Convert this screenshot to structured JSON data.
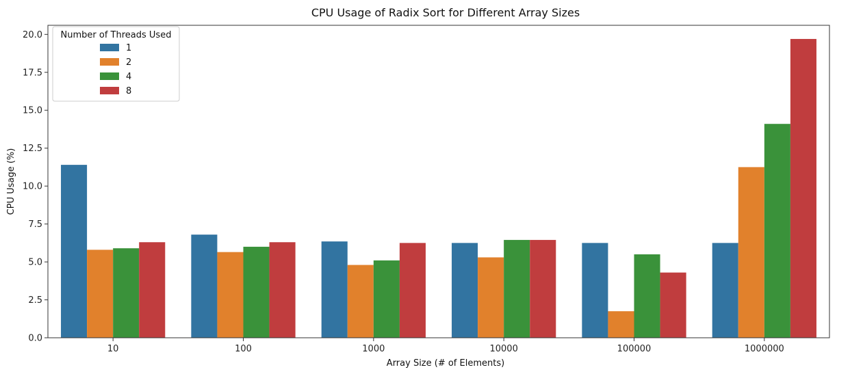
{
  "chart_data": {
    "type": "bar",
    "title": "CPU Usage of Radix Sort for Different Array Sizes",
    "xlabel": "Array Size (# of Elements)",
    "ylabel": "CPU Usage (%)",
    "categories": [
      "10",
      "100",
      "1000",
      "10000",
      "100000",
      "1000000"
    ],
    "series": [
      {
        "name": "1",
        "color": "#3274a1",
        "values": [
          11.4,
          6.8,
          6.35,
          6.25,
          6.25,
          6.25
        ]
      },
      {
        "name": "2",
        "color": "#e1812c",
        "values": [
          5.8,
          5.65,
          4.8,
          5.3,
          1.75,
          11.25
        ]
      },
      {
        "name": "4",
        "color": "#3a923a",
        "values": [
          5.9,
          6.0,
          5.1,
          6.45,
          5.5,
          14.1
        ]
      },
      {
        "name": "8",
        "color": "#c03d3e",
        "values": [
          6.3,
          6.3,
          6.25,
          6.45,
          4.3,
          19.7
        ]
      }
    ],
    "ylim": [
      0,
      20.6
    ],
    "yticks": [
      0.0,
      2.5,
      5.0,
      7.5,
      10.0,
      12.5,
      15.0,
      17.5,
      20.0
    ],
    "ytick_labels": [
      "0.0",
      "2.5",
      "5.0",
      "7.5",
      "10.0",
      "12.5",
      "15.0",
      "17.5",
      "20.0"
    ],
    "legend": {
      "title": "Number of Threads Used",
      "position": "top-left"
    },
    "grid": false
  }
}
